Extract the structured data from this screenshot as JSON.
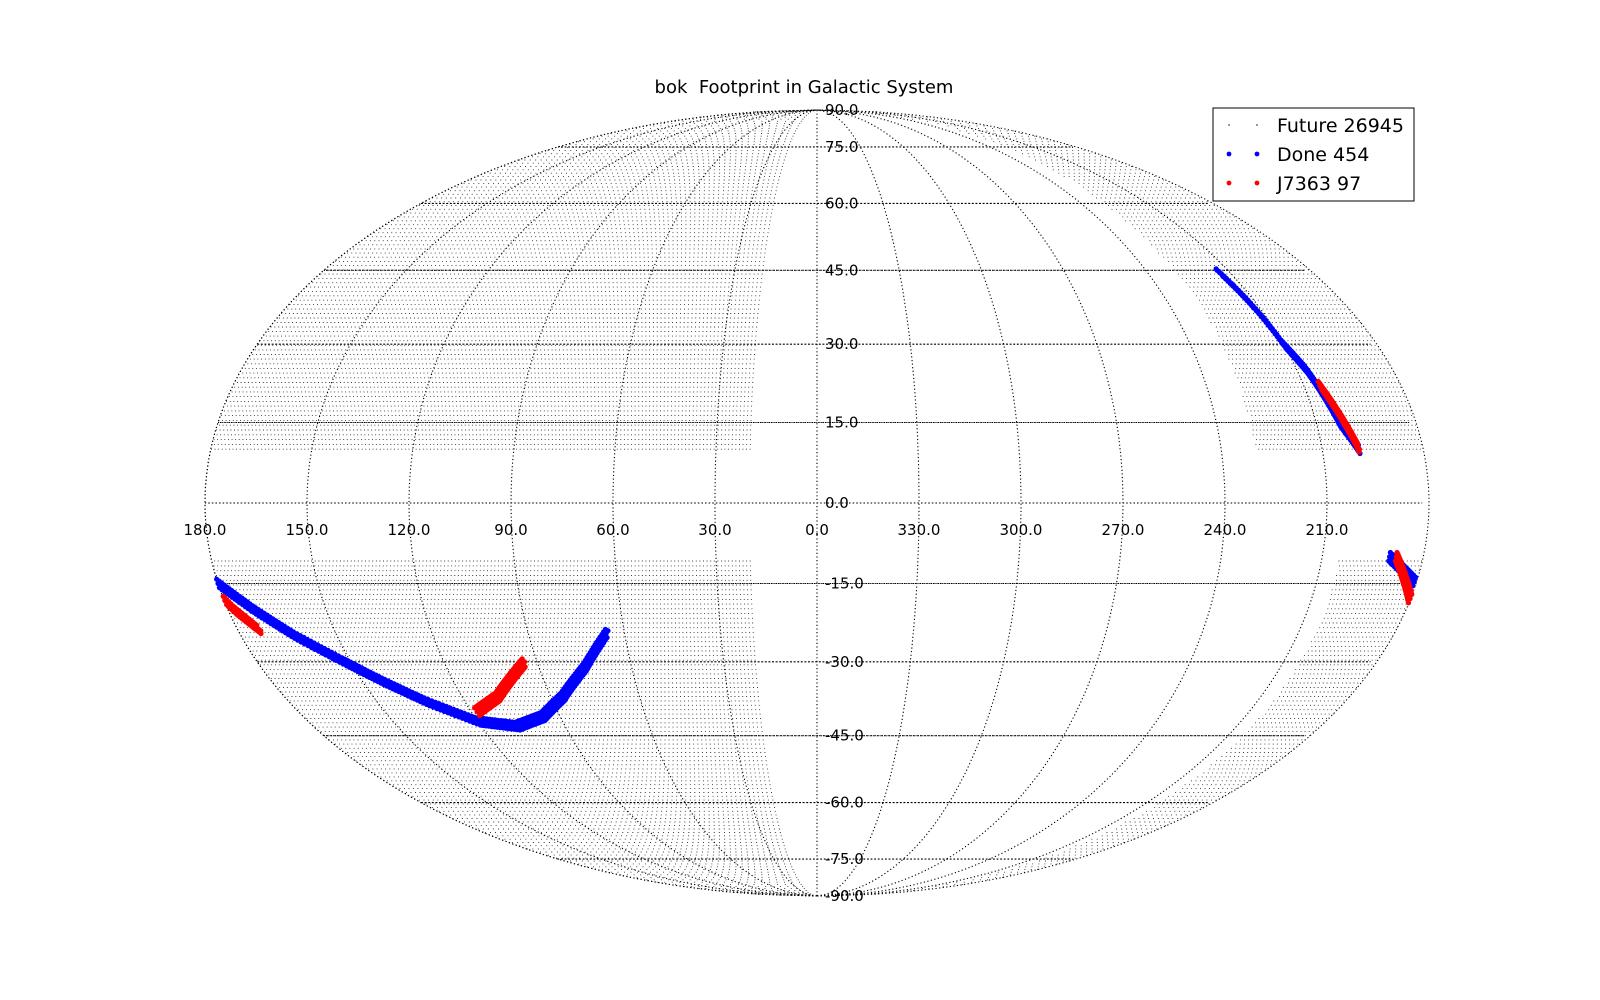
{
  "chart_data": {
    "type": "scatter",
    "projection": "mollweide",
    "title": "bok  Footprint in Galactic System",
    "xlabel": "",
    "ylabel": "",
    "longitude_tick_labels": [
      "330.0",
      "300.0",
      "270.0",
      "240.0",
      "210.0",
      "180.0",
      "150.0",
      "120.0",
      "90.0",
      "60.0",
      "30.0",
      "0.0"
    ],
    "longitude_tick_values": [
      330,
      300,
      270,
      240,
      210,
      180,
      150,
      120,
      90,
      60,
      30,
      0
    ],
    "latitude_tick_labels": [
      "90.0",
      "75.0",
      "60.0",
      "45.0",
      "30.0",
      "15.0",
      "0.0",
      "-15.0",
      "-30.0",
      "-45.0",
      "-60.0",
      "-75.0",
      "-90.0"
    ],
    "latitude_tick_values": [
      90,
      75,
      60,
      45,
      30,
      15,
      0,
      -15,
      -30,
      -45,
      -60,
      -75,
      -90
    ],
    "xlim": [
      360,
      0
    ],
    "ylim": [
      -90,
      90
    ],
    "grid": true,
    "legend_position": "top-right",
    "series": [
      {
        "name": "Future",
        "count": 26945,
        "label": "Future 26945",
        "color": "#000000",
        "marker": "point",
        "regions": [
          {
            "lon_range": [
              20,
              230
            ],
            "lat_range": [
              10,
              90
            ]
          },
          {
            "lon_range": [
              20,
              205
            ],
            "lat_range": [
              -90,
              -10
            ]
          }
        ]
      },
      {
        "name": "Done",
        "count": 454,
        "label": "Done 454",
        "color": "#0000ff",
        "marker": "dot",
        "strips": [
          {
            "lon": [
              199,
              203,
              205,
              207,
              210,
              212,
              214
            ],
            "lat": [
              10,
              15,
              20,
              25,
              30,
              38,
              45
            ]
          },
          {
            "lon": [
              190,
              180,
              172,
              163,
              152,
              143,
              133,
              120,
              107,
              96,
              86,
              75,
              65
            ],
            "lat": [
              -10,
              -15,
              -20,
              -25,
              -30,
              -34,
              -38,
              -42,
              -43,
              -41,
              -37,
              -31,
              -24
            ]
          }
        ]
      },
      {
        "name": "J7363",
        "count": 97,
        "label": "J7363 97",
        "color": "#ff0000",
        "marker": "dot",
        "strips": [
          {
            "lon": [
              205,
              203,
              201,
              199
            ],
            "lat": [
              22,
              18,
              14,
              10
            ]
          },
          {
            "lon": [
              188,
              183,
              178,
              173
            ],
            "lat": [
              -10,
              -15,
              -20,
              -24
            ]
          },
          {
            "lon": [
              118,
              108,
              100,
              94
            ],
            "lat": [
              -40,
              -37,
              -33,
              -30
            ]
          }
        ]
      }
    ]
  }
}
